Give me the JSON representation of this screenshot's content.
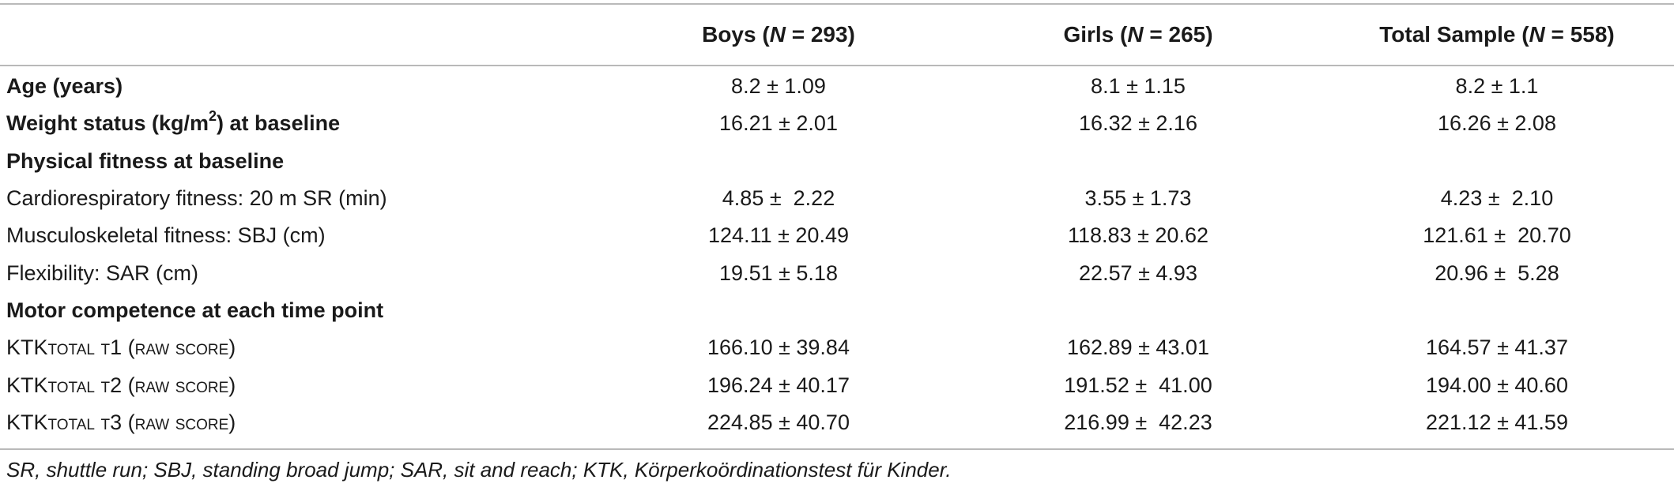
{
  "table": {
    "headers": [
      "",
      "Boys (N = 293)",
      "Girls (N = 265)",
      "Total Sample (N = 558)"
    ],
    "header_parts": [
      {
        "pre": "Boys (",
        "n": "N",
        "post": " = 293)"
      },
      {
        "pre": "Girls (",
        "n": "N",
        "post": " = 265)"
      },
      {
        "pre": "Total Sample (",
        "n": "N",
        "post": " = 558)"
      }
    ],
    "rows": [
      {
        "label": "Age (years)",
        "boys": "8.2 ± 1.09",
        "girls": "8.1 ± 1.15",
        "total": "8.2 ± 1.1"
      },
      {
        "label_pre": "Weight status (kg/m",
        "label_sup": "2",
        "label_post": ") at baseline",
        "boys": "16.21 ± 2.01",
        "girls": "16.32 ± 2.16",
        "total": "16.26 ± 2.08"
      },
      {
        "label": "Physical fitness at baseline"
      },
      {
        "label": "Cardiorespiratory fitness: 20 m SR (min)",
        "boys": "4.85 ±  2.22",
        "girls": "3.55 ± 1.73",
        "total": "4.23 ±  2.10"
      },
      {
        "label": "Musculoskeletal fitness: SBJ (cm)",
        "boys": "124.11 ± 20.49",
        "girls": "118.83 ± 20.62",
        "total": "121.61 ±  20.70"
      },
      {
        "label": "Flexibility: SAR (cm)",
        "boys": "19.51 ± 5.18",
        "girls": "22.57 ± 4.93",
        "total": "20.96 ±  5.28"
      },
      {
        "label": "Motor competence at each time point"
      },
      {
        "label_pre": "KTK",
        "label_sc": "total t1 (raw score)",
        "boys": "166.10 ± 39.84",
        "girls": "162.89 ± 43.01",
        "total": "164.57 ± 41.37"
      },
      {
        "label_pre": "KTK",
        "label_sc": "total t2 (raw score)",
        "boys": "196.24 ± 40.17",
        "girls": "191.52 ±  41.00",
        "total": "194.00 ± 40.60"
      },
      {
        "label_pre": "KTK",
        "label_sc": "total t3 (raw score)",
        "boys": "224.85 ± 40.70",
        "girls": "216.99 ±  42.23",
        "total": "221.12 ± 41.59"
      }
    ]
  },
  "footnote": "SR, shuttle run; SBJ, standing broad jump; SAR, sit and reach; KTK, Körperkoördinationstest für Kinder."
}
